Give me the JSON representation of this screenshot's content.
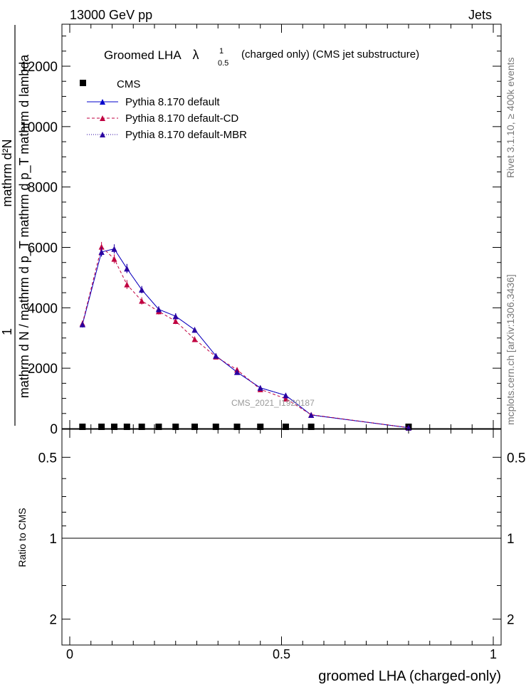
{
  "header": {
    "left": "13000 GeV pp",
    "right": "Jets"
  },
  "side": {
    "rivet": "Rivet 3.1.10, ≥ 400k events",
    "mcplots": "mcplots.cern.ch [arXiv:1306.3436]"
  },
  "watermark": "CMS_2021_I1920187",
  "chart_data": [
    {
      "type": "line",
      "title_main": "Groomed LHA",
      "title_symbol": "λ",
      "title_sup": "1",
      "title_sub": "0.5",
      "title_tail": "(charged only) (CMS jet substructure)",
      "ylabel_numerator": "1",
      "ylabel_denominator": "mathrm d N / mathrm d p_T mathrm d p_T mathrm d lambda",
      "ylabel_numerator_expr": "mathrm d²N",
      "ylim": [
        0,
        13500
      ],
      "yticks": [
        0,
        2000,
        4000,
        6000,
        8000,
        10000,
        12000
      ],
      "ytick_labels": [
        "0",
        "2000",
        "4000",
        "6000",
        "8000",
        "10000",
        "12000"
      ],
      "xlim": [
        0,
        1
      ],
      "legend": [
        "CMS",
        "Pythia 8.170 default",
        "Pythia 8.170 default-CD",
        "Pythia 8.170 default-MBR"
      ],
      "series": [
        {
          "name": "CMS",
          "marker": "square",
          "color": "#000000",
          "x": [
            0.03,
            0.075,
            0.105,
            0.135,
            0.17,
            0.21,
            0.25,
            0.295,
            0.345,
            0.395,
            0.45,
            0.51,
            0.57,
            0.8
          ],
          "values": [
            25,
            45,
            40,
            35,
            30,
            25,
            20,
            20,
            15,
            15,
            10,
            10,
            5,
            2
          ]
        },
        {
          "name": "Pythia 8.170 default",
          "marker": "triangle",
          "color": "#0000cc",
          "x": [
            0.03,
            0.075,
            0.105,
            0.135,
            0.17,
            0.21,
            0.25,
            0.295,
            0.345,
            0.395,
            0.45,
            0.51,
            0.57,
            0.8
          ],
          "values": [
            3450,
            5850,
            5950,
            5300,
            4600,
            3950,
            3720,
            3270,
            2410,
            1870,
            1350,
            1100,
            450,
            30
          ],
          "errors": [
            100,
            150,
            150,
            150,
            120,
            100,
            100,
            90,
            80,
            70,
            60,
            50,
            40,
            10
          ]
        },
        {
          "name": "Pythia 8.170 default-CD",
          "marker": "triangle",
          "color": "#c00040",
          "x": [
            0.03,
            0.075,
            0.105,
            0.135,
            0.17,
            0.21,
            0.25,
            0.295,
            0.345,
            0.395,
            0.45,
            0.51,
            0.57,
            0.8
          ],
          "values": [
            3480,
            6020,
            5620,
            4770,
            4230,
            3880,
            3560,
            2960,
            2380,
            1950,
            1300,
            990,
            460,
            30
          ],
          "errors": [
            100,
            160,
            150,
            150,
            120,
            100,
            100,
            90,
            80,
            70,
            60,
            50,
            40,
            10
          ]
        },
        {
          "name": "Pythia 8.170 default-MBR",
          "marker": "triangle",
          "color": "#2a00a0",
          "x": [
            0.03,
            0.075,
            0.105,
            0.135,
            0.17,
            0.21,
            0.25,
            0.295,
            0.345,
            0.395,
            0.45,
            0.51,
            0.57,
            0.8
          ],
          "values": [
            3450,
            5850,
            5950,
            5300,
            4600,
            3950,
            3720,
            3270,
            2410,
            1870,
            1350,
            1100,
            450,
            30
          ],
          "errors": [
            100,
            150,
            150,
            150,
            120,
            100,
            100,
            90,
            80,
            70,
            60,
            50,
            40,
            10
          ]
        }
      ]
    },
    {
      "type": "area",
      "ylabel": "Ratio to CMS",
      "xlabel": "groomed LHA (charged-only)",
      "xlim": [
        0,
        1
      ],
      "ylim": [
        0.32,
        2.32
      ],
      "xticks": [
        0,
        0.5,
        1
      ],
      "xtick_labels": [
        "0",
        "0.5",
        "1"
      ],
      "yticks": [
        0.5,
        1,
        2
      ],
      "ytick_labels": [
        "0.5",
        "1",
        "2"
      ],
      "bands": {
        "edges": [
          0,
          0.06,
          0.12,
          0.19,
          0.23,
          0.27,
          0.31,
          0.36,
          0.42,
          0.48,
          0.6,
          1.0
        ],
        "green_low": [
          0.985,
          0.98,
          0.985,
          0.99,
          0.985,
          0.985,
          0.98,
          0.99,
          0.99,
          0.985,
          0.94
        ],
        "green_high": [
          1.015,
          1.02,
          1.015,
          1.01,
          1.015,
          1.015,
          1.02,
          1.01,
          1.01,
          1.015,
          1.06
        ],
        "yellow_low": [
          0.97,
          0.955,
          0.975,
          0.985,
          0.96,
          0.975,
          0.95,
          0.975,
          0.975,
          0.965,
          0.88
        ],
        "yellow_high": [
          1.03,
          1.045,
          1.025,
          1.015,
          1.04,
          1.025,
          1.05,
          1.025,
          1.025,
          1.035,
          1.12
        ],
        "green_color": "#99ff99",
        "yellow_color": "#ffff99"
      },
      "reference_line": 1
    }
  ]
}
